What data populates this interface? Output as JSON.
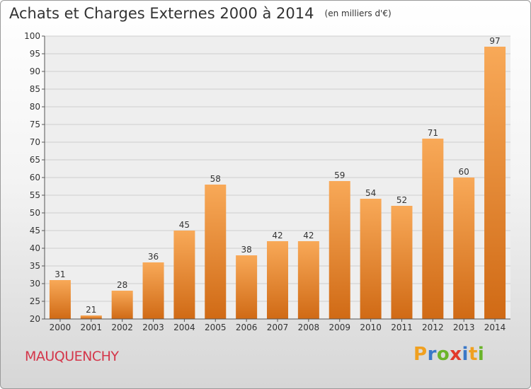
{
  "header": {
    "title": "Achats et Charges Externes 2000 à 2014",
    "unit": "(en milliers d'€)"
  },
  "commune": "MAUQUENCHY",
  "logo": {
    "letters": [
      "P",
      "r",
      "o",
      "x",
      "i",
      "t",
      "i"
    ],
    "colors": [
      "#f0a020",
      "#3a78c8",
      "#6ab42a",
      "#e23a2a",
      "#3a78c8",
      "#f0a020",
      "#6ab42a"
    ]
  },
  "colors": {
    "bar_light": "#f8a958",
    "bar_dark": "#d06a15",
    "grid": "#cfcfcf"
  },
  "chart_data": {
    "type": "bar",
    "categories": [
      "2000",
      "2001",
      "2002",
      "2003",
      "2004",
      "2005",
      "2006",
      "2007",
      "2008",
      "2009",
      "2010",
      "2011",
      "2012",
      "2013",
      "2014"
    ],
    "values": [
      31,
      21,
      28,
      36,
      45,
      58,
      38,
      42,
      42,
      59,
      54,
      52,
      71,
      60,
      97
    ],
    "ylim": [
      20,
      100
    ],
    "yticks": [
      20,
      25,
      30,
      35,
      40,
      45,
      50,
      55,
      60,
      65,
      70,
      75,
      80,
      85,
      90,
      95,
      100
    ],
    "grid": true,
    "xlabel": "",
    "ylabel": ""
  }
}
